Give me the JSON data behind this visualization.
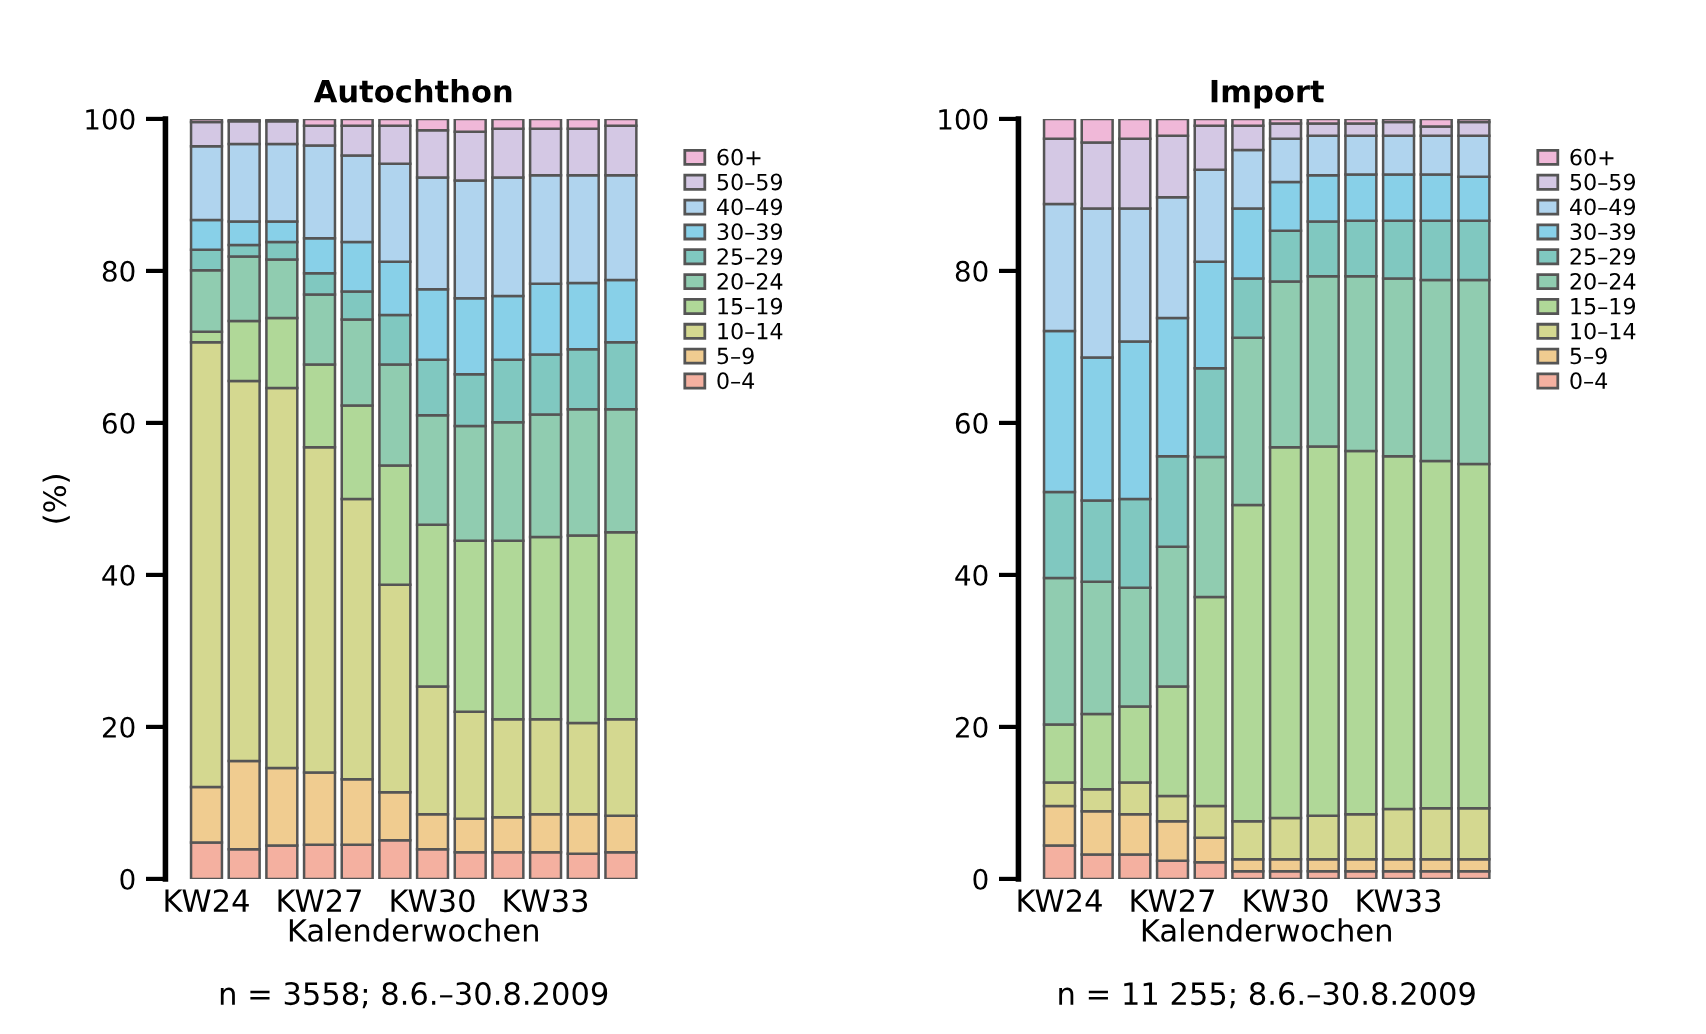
{
  "chart_data": [
    {
      "type": "bar",
      "stacked": true,
      "title": "Autochthon",
      "ylabel": "(%)",
      "xlabel": "Kalenderwochen",
      "annotations": [
        "n = 3558; 8.6.–30.8.2009"
      ],
      "categories": [
        "KW24",
        null,
        null,
        "KW27",
        null,
        null,
        "KW30",
        null,
        null,
        "KW33",
        null,
        null
      ],
      "ylim": [
        0,
        100
      ],
      "yticks": [
        0,
        20,
        40,
        60,
        80,
        100
      ],
      "grid": false,
      "legend": "right",
      "series": [
        {
          "name": "0–4",
          "color": "#f4b0a0",
          "values": [
            4.8,
            3.9,
            4.4,
            4.5,
            4.5,
            5.1,
            3.9,
            3.5,
            3.5,
            3.5,
            3.3,
            3.5
          ]
        },
        {
          "name": "5–9",
          "color": "#f0cc90",
          "values": [
            7.3,
            11.6,
            10.2,
            9.5,
            8.6,
            6.3,
            4.6,
            4.4,
            4.6,
            5.0,
            5.2,
            4.8
          ]
        },
        {
          "name": "10–14",
          "color": "#d4d890",
          "values": [
            58.5,
            50.0,
            50.0,
            42.8,
            36.9,
            27.3,
            16.8,
            14.1,
            12.9,
            12.5,
            12.0,
            12.7
          ]
        },
        {
          "name": "15–19",
          "color": "#b0d898",
          "values": [
            1.4,
            7.9,
            9.2,
            10.9,
            12.3,
            15.7,
            21.3,
            22.5,
            23.5,
            24.0,
            24.7,
            24.6
          ]
        },
        {
          "name": "20–24",
          "color": "#90ccb0",
          "values": [
            8.1,
            8.5,
            7.7,
            9.2,
            11.3,
            13.3,
            14.4,
            15.1,
            15.6,
            16.1,
            16.6,
            16.2
          ]
        },
        {
          "name": "25–29",
          "color": "#80c8c0",
          "values": [
            2.7,
            1.5,
            2.3,
            2.8,
            3.7,
            6.5,
            7.3,
            6.8,
            8.2,
            7.9,
            7.9,
            8.8
          ]
        },
        {
          "name": "30–39",
          "color": "#88d0e8",
          "values": [
            3.9,
            3.1,
            2.7,
            4.6,
            6.5,
            7.0,
            9.3,
            10.0,
            8.4,
            9.3,
            8.7,
            8.2
          ]
        },
        {
          "name": "40–49",
          "color": "#b0d4ee",
          "values": [
            9.7,
            10.2,
            10.2,
            12.2,
            11.4,
            12.9,
            14.7,
            15.5,
            15.6,
            14.3,
            14.2,
            13.8
          ]
        },
        {
          "name": "50–59",
          "color": "#d4c8e4",
          "values": [
            3.2,
            3.0,
            3.0,
            2.6,
            3.9,
            5.0,
            6.2,
            6.4,
            6.4,
            6.1,
            6.1,
            6.5
          ]
        },
        {
          "name": "60+",
          "color": "#f0b8d8",
          "values": [
            0.4,
            0.3,
            0.3,
            0.9,
            0.9,
            0.9,
            1.5,
            1.7,
            1.3,
            1.3,
            1.3,
            0.9
          ]
        }
      ]
    },
    {
      "type": "bar",
      "stacked": true,
      "title": "Import",
      "xlabel": "Kalenderwochen",
      "annotations": [
        "n = 11 255; 8.6.–30.8.2009"
      ],
      "categories": [
        "KW24",
        null,
        null,
        "KW27",
        null,
        null,
        "KW30",
        null,
        null,
        "KW33",
        null,
        null
      ],
      "ylim": [
        0,
        100
      ],
      "yticks": [
        0,
        20,
        40,
        60,
        80,
        100
      ],
      "grid": false,
      "legend": "right",
      "series": [
        {
          "name": "0–4",
          "color": "#f4b0a0",
          "values": [
            4.4,
            3.2,
            3.2,
            2.4,
            2.2,
            1.0,
            1.0,
            1.0,
            1.0,
            1.0,
            1.0,
            1.0
          ]
        },
        {
          "name": "5–9",
          "color": "#f0cc90",
          "values": [
            5.2,
            5.7,
            5.3,
            5.2,
            3.2,
            1.6,
            1.6,
            1.6,
            1.6,
            1.6,
            1.6,
            1.6
          ]
        },
        {
          "name": "10–14",
          "color": "#d4d890",
          "values": [
            3.1,
            2.9,
            4.2,
            3.3,
            4.2,
            5.0,
            5.4,
            5.7,
            5.9,
            6.6,
            6.7,
            6.7
          ]
        },
        {
          "name": "15–19",
          "color": "#b0d898",
          "values": [
            7.6,
            9.9,
            10.0,
            14.4,
            27.5,
            41.6,
            48.8,
            48.6,
            47.8,
            46.4,
            45.7,
            45.3
          ]
        },
        {
          "name": "20–24",
          "color": "#90ccb0",
          "values": [
            19.3,
            17.4,
            15.6,
            18.4,
            18.4,
            22.0,
            21.8,
            22.4,
            23.0,
            23.4,
            23.8,
            24.2
          ]
        },
        {
          "name": "25–29",
          "color": "#80c8c0",
          "values": [
            11.3,
            10.7,
            11.7,
            11.9,
            11.7,
            7.8,
            6.7,
            7.2,
            7.3,
            7.6,
            7.8,
            7.8
          ]
        },
        {
          "name": "30–39",
          "color": "#88d0e8",
          "values": [
            21.2,
            18.8,
            20.7,
            18.2,
            14.0,
            9.2,
            6.4,
            6.1,
            6.1,
            6.1,
            6.1,
            5.8
          ]
        },
        {
          "name": "40–49",
          "color": "#b0d4ee",
          "values": [
            16.7,
            19.6,
            17.5,
            15.9,
            12.1,
            7.7,
            5.7,
            5.2,
            5.1,
            5.1,
            5.1,
            5.4
          ]
        },
        {
          "name": "50–59",
          "color": "#d4c8e4",
          "values": [
            8.6,
            8.7,
            9.2,
            8.1,
            5.8,
            3.2,
            2.0,
            1.6,
            1.6,
            1.8,
            1.2,
            1.8
          ]
        },
        {
          "name": "60+",
          "color": "#f0b8d8",
          "values": [
            2.6,
            3.1,
            2.6,
            2.2,
            0.9,
            0.9,
            0.6,
            0.6,
            0.6,
            0.4,
            1.0,
            0.4
          ]
        }
      ]
    }
  ]
}
